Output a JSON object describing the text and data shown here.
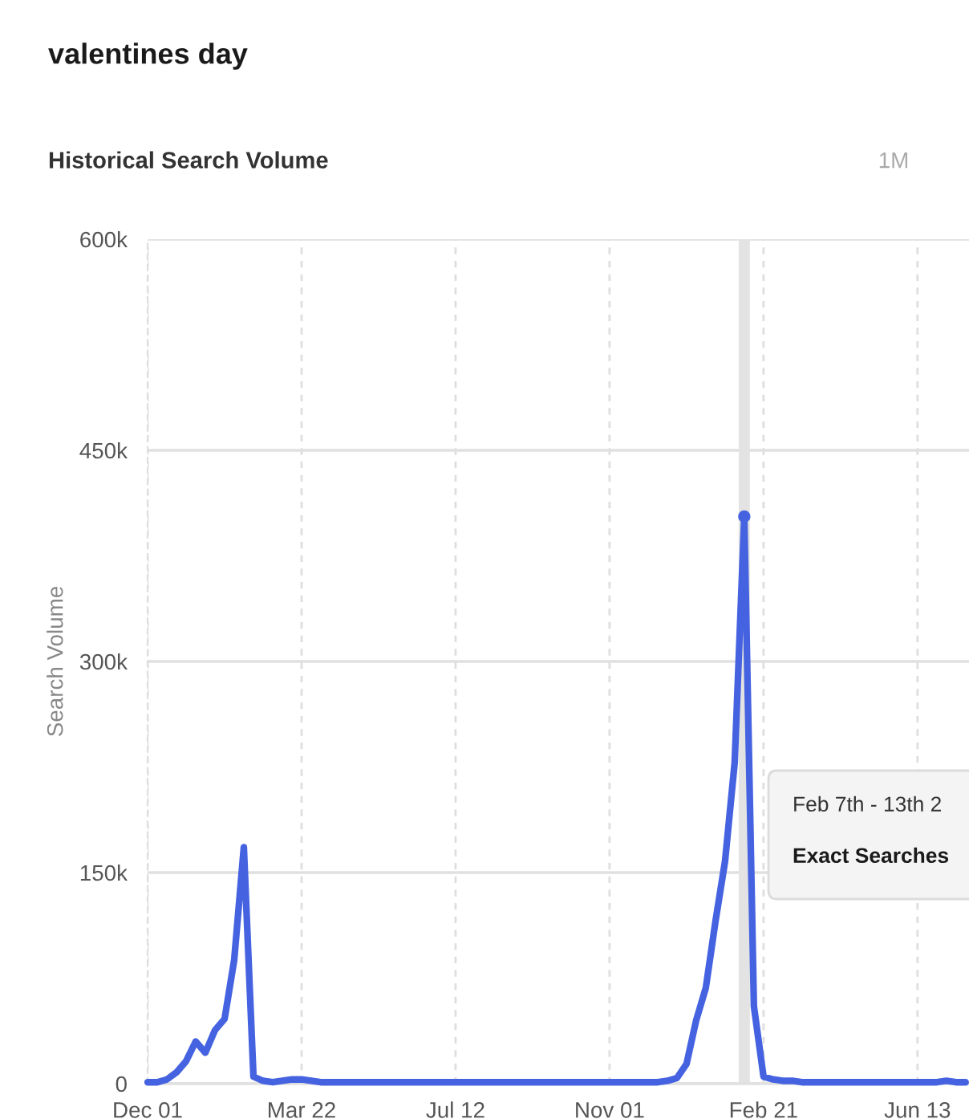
{
  "chart_data": {
    "type": "line",
    "title": "valentines day",
    "subtitle": "Historical Search Volume",
    "ylabel": "Search Volume",
    "annotations": [
      "1M",
      "Feb 7th - 13th 2",
      "Exact Searches"
    ],
    "categories": [
      "Dec 01",
      null,
      null,
      null,
      null,
      null,
      null,
      null,
      null,
      null,
      null,
      null,
      null,
      null,
      null,
      null,
      "Mar 22",
      null,
      null,
      null,
      null,
      null,
      null,
      null,
      null,
      null,
      null,
      null,
      null,
      null,
      null,
      null,
      "Jul 12",
      null,
      null,
      null,
      null,
      null,
      null,
      null,
      null,
      null,
      null,
      null,
      null,
      null,
      null,
      null,
      "Nov 01",
      null,
      null,
      null,
      null,
      null,
      null,
      null,
      null,
      null,
      null,
      null,
      null,
      null,
      null,
      null,
      "Feb 21",
      null,
      null,
      null,
      null,
      null,
      null,
      null,
      null,
      null,
      null,
      null,
      null,
      null,
      null,
      null,
      "Jun 13",
      null,
      null,
      null,
      null,
      null
    ],
    "series": [
      {
        "color": "#4563e0",
        "values": [
          1000,
          1000,
          3000,
          8000,
          16000,
          30000,
          22000,
          38000,
          46000,
          88000,
          168000,
          5000,
          2000,
          1000,
          2000,
          3000,
          3000,
          2000,
          1000,
          1000,
          1000,
          1000,
          1000,
          1000,
          1000,
          1000,
          1000,
          1000,
          1000,
          1000,
          1000,
          1000,
          1000,
          1000,
          1000,
          1000,
          1000,
          1000,
          1000,
          1000,
          1000,
          1000,
          1000,
          1000,
          1000,
          1000,
          1000,
          1000,
          1000,
          1000,
          1000,
          1000,
          1000,
          1000,
          2000,
          4000,
          14000,
          45000,
          68000,
          115000,
          158000,
          228000,
          403000,
          55000,
          5000,
          3000,
          2000,
          2000,
          1000,
          1000,
          1000,
          1000,
          1000,
          1000,
          1000,
          1000,
          1000,
          1000,
          1000,
          1000,
          1000,
          1000,
          1000,
          2000,
          1000,
          1000
        ]
      },
      {
        "type": "scatter",
        "marker": "circle",
        "color": "#4563e0",
        "values": [
          null,
          null,
          null,
          null,
          null,
          null,
          null,
          null,
          null,
          null,
          null,
          null,
          null,
          null,
          null,
          null,
          null,
          null,
          null,
          null,
          null,
          null,
          null,
          null,
          null,
          null,
          null,
          null,
          null,
          null,
          null,
          null,
          null,
          null,
          null,
          null,
          null,
          null,
          null,
          null,
          null,
          null,
          null,
          null,
          null,
          null,
          null,
          null,
          null,
          null,
          null,
          null,
          null,
          null,
          null,
          null,
          null,
          null,
          null,
          null,
          null,
          null,
          403000,
          null,
          null,
          null,
          null,
          null,
          null,
          null,
          null,
          null,
          null,
          null,
          null,
          null,
          null,
          null,
          null,
          null,
          null,
          null,
          null,
          null,
          null,
          null
        ]
      }
    ],
    "ylim": [
      0,
      600000
    ],
    "yticks": [
      0,
      {
        "value": 150000,
        "label": "150k"
      },
      {
        "value": 300000,
        "label": "300k"
      },
      {
        "value": 450000,
        "label": "450k"
      },
      {
        "value": 600000,
        "label": "600k"
      }
    ],
    "grid": true
  }
}
